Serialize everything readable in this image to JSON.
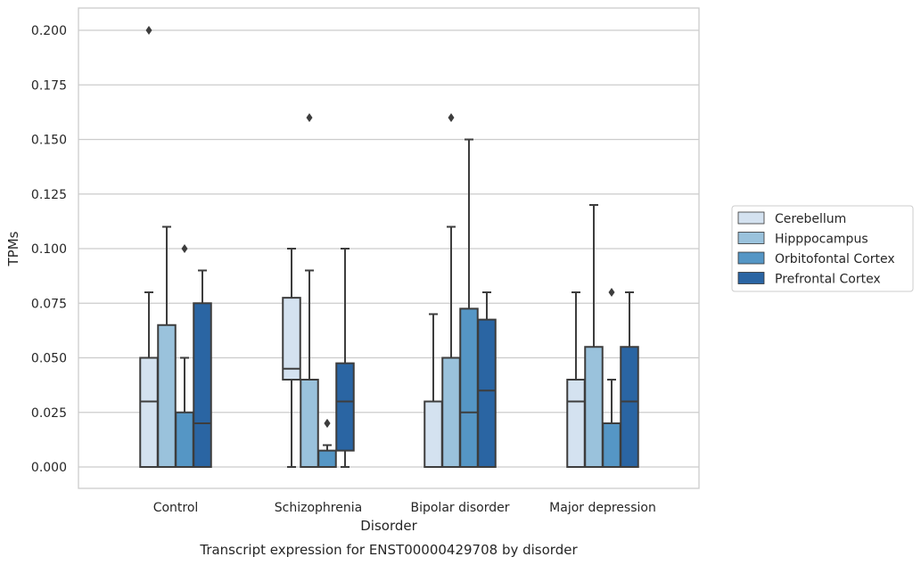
{
  "chart_data": {
    "type": "box",
    "title": "",
    "caption": "Transcript expression for ENST00000429708 by disorder",
    "xlabel": "Disorder",
    "ylabel": "TPMs",
    "ylim": [
      -0.01,
      0.21
    ],
    "yticks": [
      "0.000",
      "0.025",
      "0.050",
      "0.075",
      "0.100",
      "0.125",
      "0.150",
      "0.175",
      "0.200"
    ],
    "grid": true,
    "legend_position": "right",
    "categories": [
      "Control",
      "Schizophrenia",
      "Bipolar disorder",
      "Major depression"
    ],
    "series": [
      {
        "name": "Cerebellum",
        "color": "#d4e2f0",
        "boxes": [
          {
            "whisker_low": 0.0,
            "q1": 0.0,
            "median": 0.03,
            "q3": 0.05,
            "whisker_high": 0.08,
            "outliers": [
              0.2
            ]
          },
          {
            "whisker_low": 0.0,
            "q1": 0.04,
            "median": 0.045,
            "q3": 0.0775,
            "whisker_high": 0.1,
            "outliers": []
          },
          {
            "whisker_low": 0.0,
            "q1": 0.0,
            "median": 0.0,
            "q3": 0.03,
            "whisker_high": 0.07,
            "outliers": []
          },
          {
            "whisker_low": 0.0,
            "q1": 0.0,
            "median": 0.03,
            "q3": 0.04,
            "whisker_high": 0.08,
            "outliers": []
          }
        ]
      },
      {
        "name": "Hipppocampus",
        "color": "#9ac2dc",
        "boxes": [
          {
            "whisker_low": 0.0,
            "q1": 0.0,
            "median": 0.0,
            "q3": 0.065,
            "whisker_high": 0.11,
            "outliers": []
          },
          {
            "whisker_low": 0.0,
            "q1": 0.0,
            "median": 0.0,
            "q3": 0.04,
            "whisker_high": 0.09,
            "outliers": [
              0.16
            ]
          },
          {
            "whisker_low": 0.0,
            "q1": 0.0,
            "median": 0.0,
            "q3": 0.05,
            "whisker_high": 0.11,
            "outliers": [
              0.16
            ]
          },
          {
            "whisker_low": 0.0,
            "q1": 0.0,
            "median": 0.0,
            "q3": 0.055,
            "whisker_high": 0.12,
            "outliers": []
          }
        ]
      },
      {
        "name": "Orbitofontal Cortex",
        "color": "#5596c5",
        "boxes": [
          {
            "whisker_low": 0.0,
            "q1": 0.0,
            "median": 0.0,
            "q3": 0.025,
            "whisker_high": 0.05,
            "outliers": [
              0.1
            ]
          },
          {
            "whisker_low": 0.0,
            "q1": 0.0,
            "median": 0.0,
            "q3": 0.0075,
            "whisker_high": 0.01,
            "outliers": [
              0.02,
              0.02
            ]
          },
          {
            "whisker_low": 0.0,
            "q1": 0.0,
            "median": 0.025,
            "q3": 0.0725,
            "whisker_high": 0.15,
            "outliers": []
          },
          {
            "whisker_low": 0.0,
            "q1": 0.0,
            "median": 0.0,
            "q3": 0.02,
            "whisker_high": 0.04,
            "outliers": [
              0.08
            ]
          }
        ]
      },
      {
        "name": "Prefrontal Cortex",
        "color": "#2a65a3",
        "boxes": [
          {
            "whisker_low": 0.0,
            "q1": 0.0,
            "median": 0.02,
            "q3": 0.075,
            "whisker_high": 0.09,
            "outliers": []
          },
          {
            "whisker_low": 0.0,
            "q1": 0.0075,
            "median": 0.03,
            "q3": 0.0475,
            "whisker_high": 0.1,
            "outliers": []
          },
          {
            "whisker_low": 0.0,
            "q1": 0.0,
            "median": 0.035,
            "q3": 0.0675,
            "whisker_high": 0.08,
            "outliers": []
          },
          {
            "whisker_low": 0.0,
            "q1": 0.0,
            "median": 0.03,
            "q3": 0.055,
            "whisker_high": 0.08,
            "outliers": []
          }
        ]
      }
    ]
  }
}
